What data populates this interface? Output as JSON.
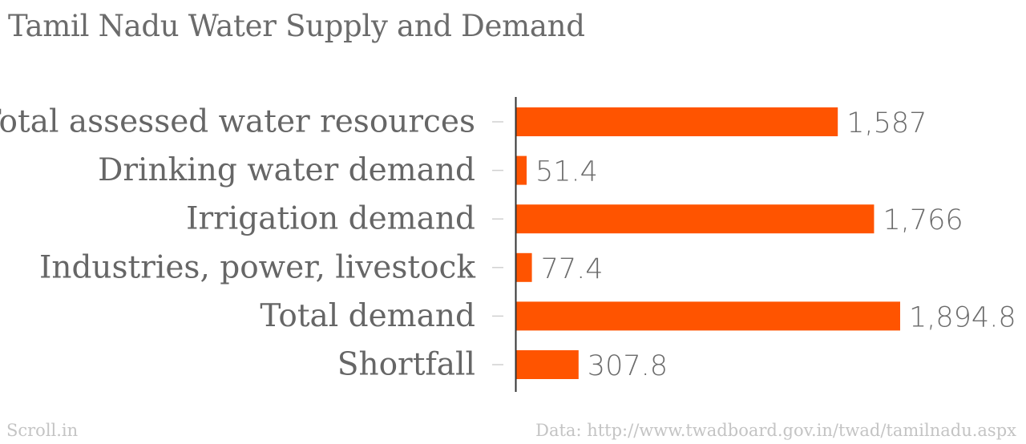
{
  "title": "Tamil Nadu Water Supply and Demand",
  "footer": {
    "credit": "Scroll.in",
    "source": "Data: http://www.twadboard.gov.in/twad/tamilnadu.aspx"
  },
  "colors": {
    "bar": "#ff5400",
    "title": "#6b6b6b",
    "category_label": "#666666",
    "value_label": "#6b6b6b",
    "axis": "#333333",
    "tick": "#d0d0d0",
    "footer": "#c4c4c4"
  },
  "chart_data": {
    "type": "bar",
    "orientation": "horizontal",
    "title": "Tamil Nadu Water Supply and Demand",
    "categories": [
      "Total assessed water resources",
      "Drinking water demand",
      "Irrigation demand",
      "Industries, power, livestock",
      "Total demand",
      "Shortfall"
    ],
    "values": [
      1587,
      51.4,
      1766,
      77.4,
      1894.8,
      307.8
    ],
    "value_labels": [
      "1,587",
      "51.4",
      "1,766",
      "77.4",
      "1,894.8",
      "307.8"
    ],
    "xlabel": "",
    "ylabel": "",
    "xlim": [
      0,
      1894.8
    ],
    "grid": false,
    "legend": "none"
  }
}
